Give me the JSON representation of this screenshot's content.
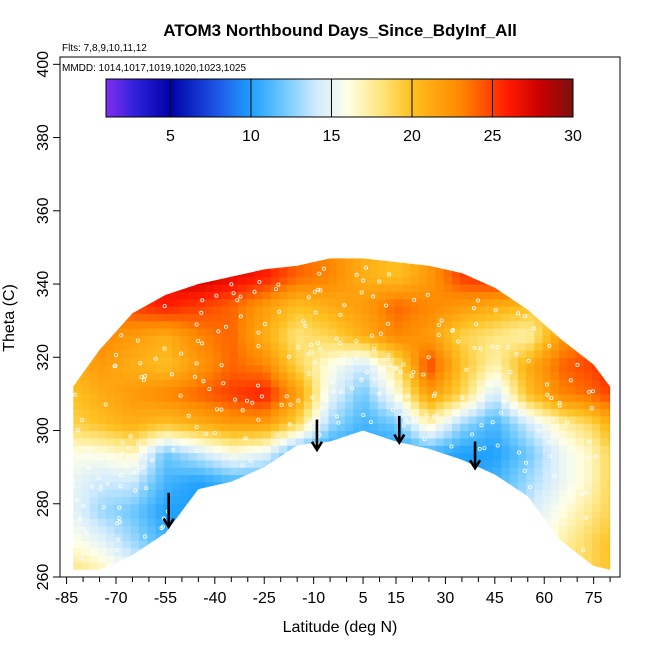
{
  "chart_data": {
    "type": "heatmap",
    "title": "ATOM3 Northbound Days_Since_BdyInf_All",
    "subtitle_flights": "Flts: 7,8,9,10,11,12",
    "subtitle_dates": "MMDD: 1014,1017,1019,1020,1023,1025",
    "xlabel": "Latitude (deg N)",
    "ylabel": "Theta (C)",
    "xlim": [
      -87,
      83
    ],
    "ylim": [
      260,
      402
    ],
    "x_ticks": [
      -85,
      -70,
      -55,
      -40,
      -25,
      -10,
      5,
      15,
      30,
      45,
      60,
      75
    ],
    "x_tick_labels": [
      "-85",
      "-70",
      "-55",
      "-40",
      "-25",
      "-10",
      "5",
      "15",
      "30",
      "45",
      "60",
      "75"
    ],
    "y_ticks": [
      260,
      280,
      300,
      320,
      340,
      360,
      380,
      400
    ],
    "y_tick_labels": [
      "260",
      "280",
      "300",
      "320",
      "340",
      "360",
      "380",
      "400"
    ],
    "colorbar": {
      "range": [
        1,
        30
      ],
      "ticks": [
        5,
        10,
        15,
        20,
        25,
        30
      ],
      "tick_labels": [
        "5",
        "10",
        "15",
        "20",
        "25",
        "30"
      ],
      "color_stops": [
        {
          "value": 1,
          "color": "#7f2ff0"
        },
        {
          "value": 3,
          "color": "#2a1fd8"
        },
        {
          "value": 5,
          "color": "#0000a8"
        },
        {
          "value": 8,
          "color": "#1f58e8"
        },
        {
          "value": 10,
          "color": "#1ea0ff"
        },
        {
          "value": 12,
          "color": "#6cc8ff"
        },
        {
          "value": 14,
          "color": "#cfeaff"
        },
        {
          "value": 16,
          "color": "#ffffe8"
        },
        {
          "value": 18,
          "color": "#ffe680"
        },
        {
          "value": 20,
          "color": "#ffc020"
        },
        {
          "value": 23,
          "color": "#ff8800"
        },
        {
          "value": 26,
          "color": "#ff1a00"
        },
        {
          "value": 28,
          "color": "#c80000"
        },
        {
          "value": 30,
          "color": "#7a1010"
        }
      ]
    },
    "field": {
      "lat": [
        -83,
        -75,
        -65,
        -55,
        -45,
        -35,
        -25,
        -15,
        -5,
        5,
        15,
        25,
        35,
        45,
        55,
        65,
        75,
        80
      ],
      "bottom_theta": [
        262,
        262,
        266,
        272,
        284,
        286,
        290,
        296,
        297,
        300,
        297,
        295,
        292,
        288,
        282,
        270,
        263,
        262
      ],
      "top_theta": [
        312,
        322,
        332,
        337,
        340,
        342,
        344,
        345,
        347,
        347,
        346,
        345,
        343,
        339,
        333,
        325,
        318,
        312
      ],
      "days_rows": [
        {
          "theta": 342,
          "values": [
            20,
            22,
            25,
            27,
            28,
            27,
            26,
            24,
            23,
            21,
            20,
            22,
            25,
            26,
            27,
            28,
            28,
            27
          ]
        },
        {
          "theta": 334,
          "values": [
            21,
            23,
            25,
            26,
            25,
            24,
            22,
            20,
            21,
            22,
            24,
            23,
            22,
            21,
            20,
            19,
            20,
            22
          ]
        },
        {
          "theta": 326,
          "values": [
            22,
            23,
            22,
            21,
            23,
            24,
            21,
            18,
            19,
            21,
            23,
            22,
            19,
            18,
            17,
            22,
            24,
            25
          ]
        },
        {
          "theta": 318,
          "values": [
            21,
            22,
            21,
            20,
            22,
            24,
            23,
            19,
            16,
            14,
            18,
            25,
            20,
            17,
            21,
            24,
            25,
            26
          ]
        },
        {
          "theta": 310,
          "values": [
            20,
            21,
            22,
            23,
            24,
            25,
            26,
            22,
            15,
            12,
            16,
            22,
            19,
            14,
            20,
            23,
            24,
            25
          ]
        },
        {
          "theta": 302,
          "values": [
            19,
            20,
            21,
            20,
            21,
            22,
            22,
            19,
            13,
            11,
            12,
            17,
            13,
            11,
            14,
            17,
            19,
            21
          ]
        },
        {
          "theta": 294,
          "values": [
            16,
            16,
            17,
            12,
            14,
            16,
            15,
            11,
            10,
            10,
            10,
            11,
            10,
            10,
            12,
            15,
            17,
            19
          ]
        },
        {
          "theta": 286,
          "values": [
            15,
            14,
            14,
            11,
            10,
            11,
            11,
            10,
            10,
            10,
            10,
            10,
            10,
            11,
            13,
            15,
            17,
            19
          ]
        },
        {
          "theta": 278,
          "values": [
            15,
            13,
            12,
            10,
            10,
            10,
            10,
            10,
            10,
            10,
            10,
            10,
            10,
            11,
            14,
            16,
            18,
            19
          ]
        },
        {
          "theta": 270,
          "values": [
            16,
            15,
            13,
            11,
            10,
            10,
            10,
            10,
            10,
            10,
            10,
            10,
            10,
            12,
            15,
            17,
            19,
            20
          ]
        },
        {
          "theta": 262,
          "values": [
            18,
            17,
            15,
            13,
            11,
            11,
            11,
            11,
            11,
            11,
            11,
            11,
            11,
            13,
            16,
            18,
            19,
            20
          ]
        }
      ]
    },
    "arrows": [
      {
        "lat": -54,
        "theta_start": 283,
        "theta_end": 274
      },
      {
        "lat": -9,
        "theta_start": 303,
        "theta_end": 295
      },
      {
        "lat": 16,
        "theta_start": 304,
        "theta_end": 297
      },
      {
        "lat": 39,
        "theta_start": 297,
        "theta_end": 290
      }
    ]
  }
}
